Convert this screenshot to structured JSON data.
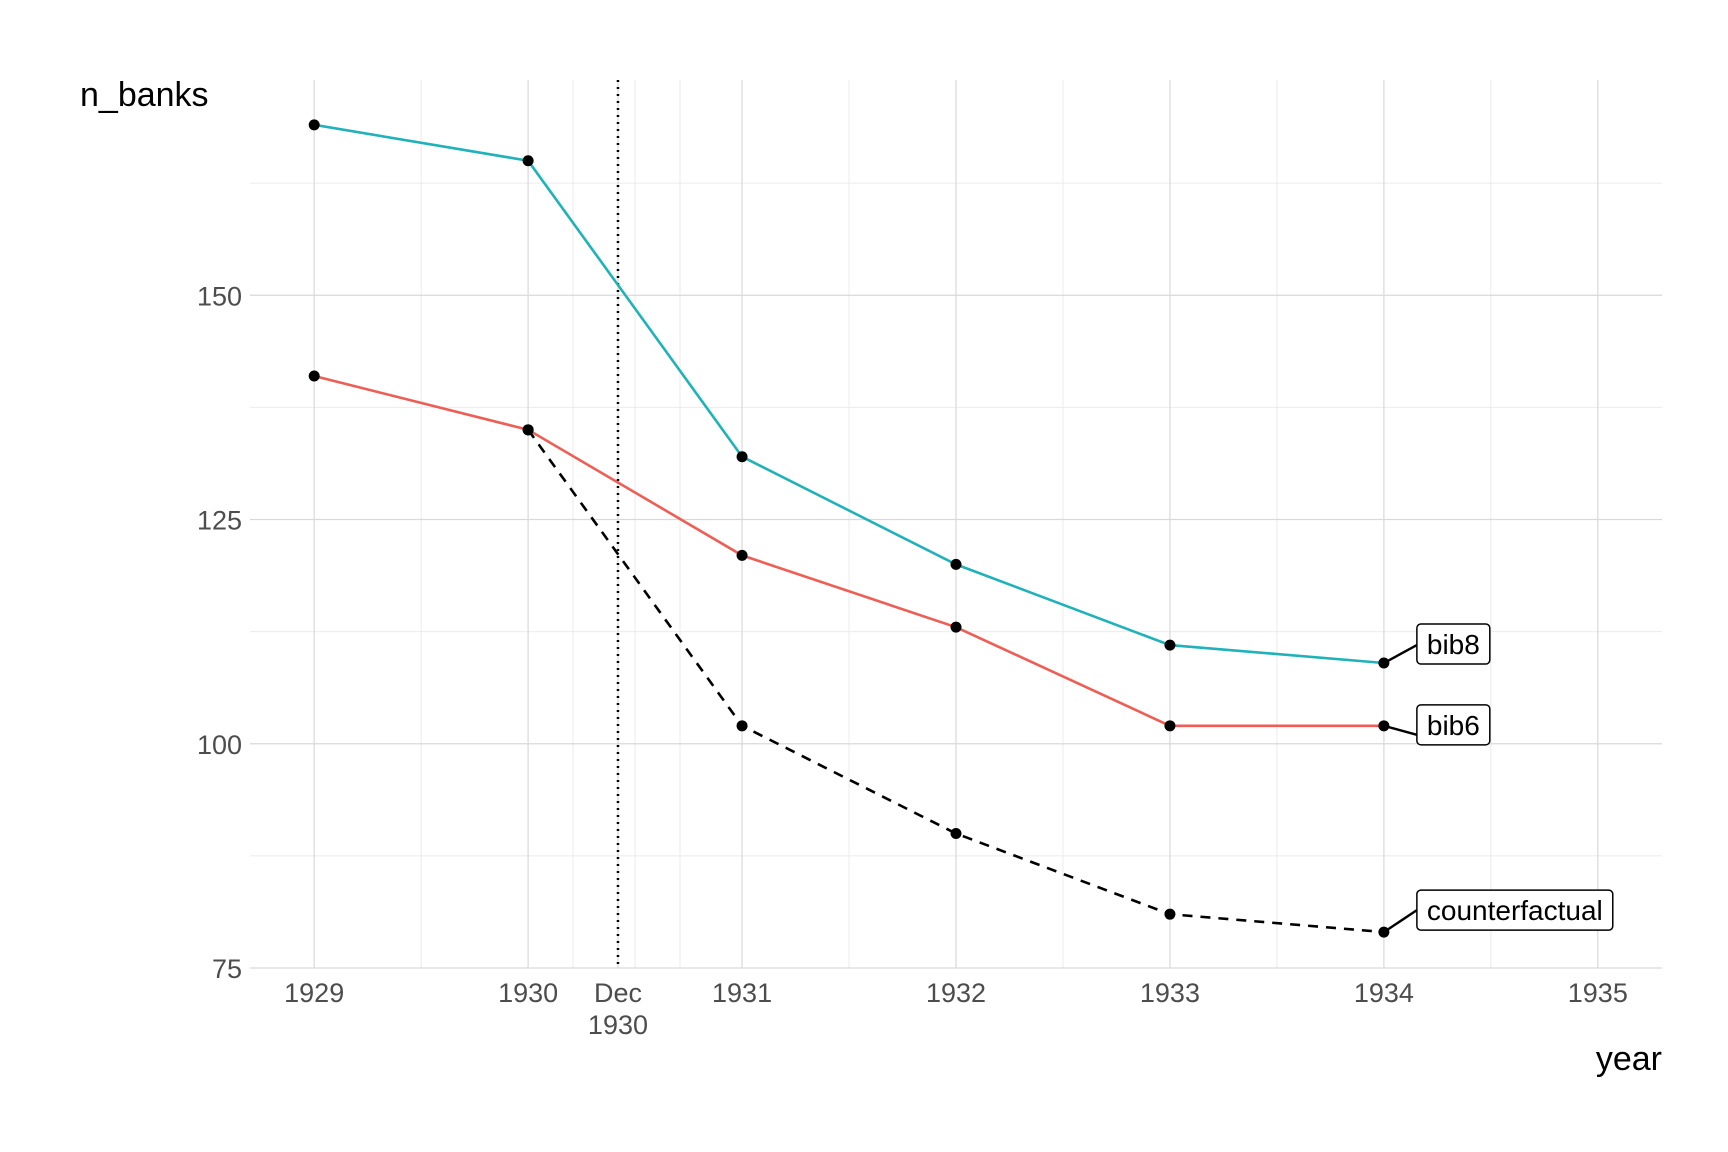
{
  "chart_data": {
    "type": "line",
    "xlabel": "year",
    "ylabel": "n_banks",
    "xlim": [
      1928.7,
      1935.3
    ],
    "ylim": [
      75,
      174
    ],
    "x_ticks": [
      1929,
      1930,
      1931,
      1932,
      1933,
      1934,
      1935
    ],
    "x_tick_labels": [
      "1929",
      "1930",
      "1931",
      "1932",
      "1933",
      "1934",
      "1935"
    ],
    "y_ticks": [
      75,
      100,
      125,
      150
    ],
    "y_tick_labels": [
      "75",
      "100",
      "125",
      "150"
    ],
    "grid": true,
    "legend": "none",
    "event_line": {
      "x": 1930.42,
      "label_line1": "Dec",
      "label_line2": "1930",
      "style": "dotted",
      "color": "#000000"
    },
    "series": [
      {
        "name": "bib8",
        "color": "#1fb2b8",
        "dash": "solid",
        "x": [
          1929,
          1930,
          1931,
          1932,
          1933,
          1934
        ],
        "values": [
          169,
          165,
          132,
          120,
          111,
          109
        ]
      },
      {
        "name": "bib6",
        "color": "#ef5e55",
        "dash": "solid",
        "x": [
          1929,
          1930,
          1931,
          1932,
          1933,
          1934
        ],
        "values": [
          141,
          135,
          121,
          113,
          102,
          102
        ]
      },
      {
        "name": "counterfactual",
        "color": "#000000",
        "dash": "dashed",
        "x": [
          1930,
          1931,
          1932,
          1933,
          1934
        ],
        "values": [
          135,
          102,
          90,
          81,
          79
        ]
      }
    ]
  }
}
